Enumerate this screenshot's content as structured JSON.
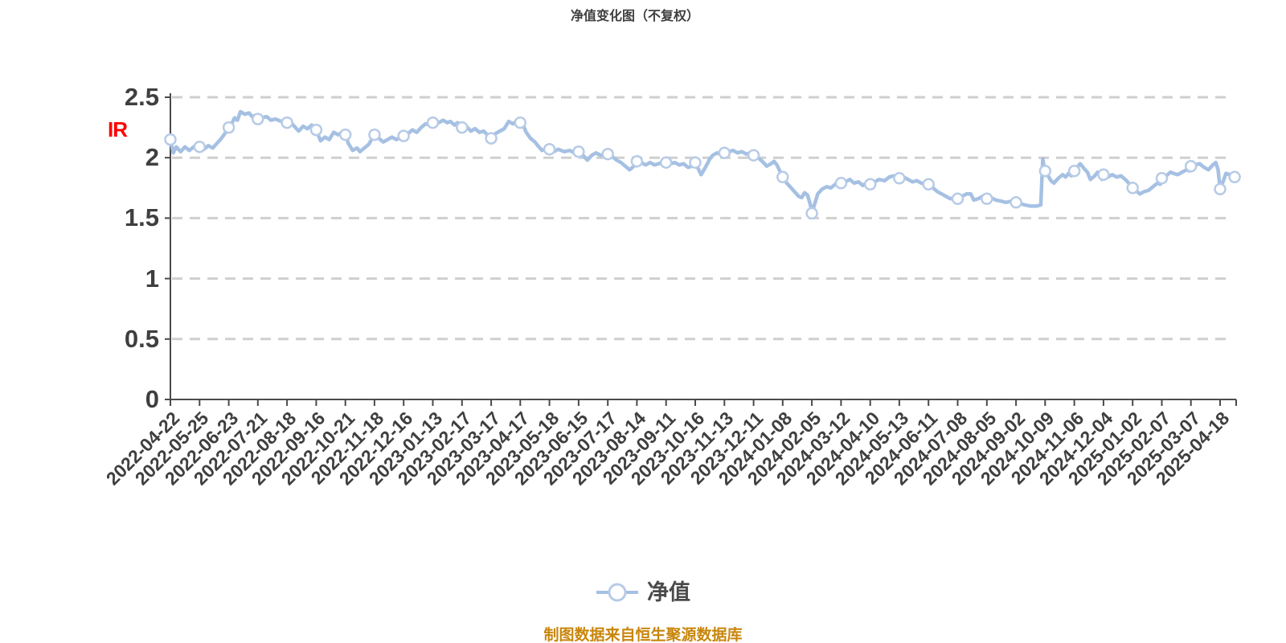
{
  "title": "净值变化图（不复权）",
  "side_label": "IR",
  "legend": {
    "label": "净值"
  },
  "footer": "制图数据来自恒生聚源数据库",
  "colors": {
    "background": "#ffffff",
    "title_text": "#3f3f3f",
    "axis": "#4a4a4a",
    "grid": "#cfcfcf",
    "line": "#a5c0e2",
    "marker_fill": "#ffffff",
    "marker_stroke": "#b7cbe7",
    "label_text": "#3f3f3f",
    "legend_text": "#4a4a4a",
    "footer_text": "#c8860c",
    "side_label_text": "#fd0202"
  },
  "chart_data": {
    "type": "line",
    "title": "净值变化图（不复权）",
    "series_name": "净值",
    "legend_position": "bottom",
    "grid": "dashed-horizontal",
    "ylim": [
      0,
      2.5
    ],
    "yticks": [
      0,
      0.5,
      1,
      1.5,
      2,
      2.5
    ],
    "categories": [
      "2022-04-22",
      "2022-05-25",
      "2022-06-23",
      "2022-07-21",
      "2022-08-18",
      "2022-09-16",
      "2022-10-21",
      "2022-11-18",
      "2022-12-16",
      "2023-01-13",
      "2023-02-17",
      "2023-03-17",
      "2023-04-17",
      "2023-05-18",
      "2023-06-15",
      "2023-07-17",
      "2023-08-14",
      "2023-09-11",
      "2023-10-16",
      "2023-11-13",
      "2023-12-11",
      "2024-01-08",
      "2024-02-05",
      "2024-03-12",
      "2024-04-10",
      "2024-05-13",
      "2024-06-11",
      "2024-07-08",
      "2024-08-05",
      "2024-09-02",
      "2024-10-09",
      "2024-11-06",
      "2024-12-04",
      "2025-01-02",
      "2025-02-07",
      "2025-03-07",
      "2025-04-18"
    ],
    "marker_values": [
      2.15,
      2.09,
      2.25,
      2.32,
      2.29,
      2.23,
      2.19,
      2.19,
      2.18,
      2.29,
      2.25,
      2.16,
      2.29,
      2.07,
      2.05,
      2.03,
      1.97,
      1.96,
      1.96,
      2.04,
      2.02,
      1.84,
      1.54,
      1.79,
      1.78,
      1.83,
      1.78,
      1.66,
      1.66,
      1.63,
      1.89,
      1.89,
      1.86,
      1.75,
      1.83,
      1.93,
      1.74
    ],
    "extra_end_point": {
      "index": 36.5,
      "value": 1.84
    },
    "points": [
      [
        0,
        2.15
      ],
      [
        0.1,
        2.04
      ],
      [
        0.2,
        2.09
      ],
      [
        0.35,
        2.05
      ],
      [
        0.5,
        2.09
      ],
      [
        0.65,
        2.06
      ],
      [
        0.8,
        2.09
      ],
      [
        0.9,
        2.07
      ],
      [
        1,
        2.09
      ],
      [
        1.15,
        2.07
      ],
      [
        1.3,
        2.1
      ],
      [
        1.45,
        2.08
      ],
      [
        1.6,
        2.12
      ],
      [
        1.75,
        2.16
      ],
      [
        1.9,
        2.21
      ],
      [
        2,
        2.25
      ],
      [
        2.1,
        2.28
      ],
      [
        2.2,
        2.33
      ],
      [
        2.3,
        2.31
      ],
      [
        2.4,
        2.38
      ],
      [
        2.55,
        2.36
      ],
      [
        2.7,
        2.37
      ],
      [
        2.8,
        2.34
      ],
      [
        2.9,
        2.35
      ],
      [
        3,
        2.32
      ],
      [
        3.15,
        2.33
      ],
      [
        3.3,
        2.34
      ],
      [
        3.45,
        2.31
      ],
      [
        3.6,
        2.32
      ],
      [
        3.8,
        2.3
      ],
      [
        3.9,
        2.31
      ],
      [
        4,
        2.29
      ],
      [
        4.1,
        2.3
      ],
      [
        4.25,
        2.26
      ],
      [
        4.4,
        2.22
      ],
      [
        4.55,
        2.26
      ],
      [
        4.7,
        2.24
      ],
      [
        4.85,
        2.27
      ],
      [
        4.95,
        2.25
      ],
      [
        5,
        2.23
      ],
      [
        5.15,
        2.14
      ],
      [
        5.3,
        2.17
      ],
      [
        5.45,
        2.15
      ],
      [
        5.6,
        2.21
      ],
      [
        5.75,
        2.19
      ],
      [
        5.9,
        2.21
      ],
      [
        6,
        2.19
      ],
      [
        6.1,
        2.12
      ],
      [
        6.25,
        2.06
      ],
      [
        6.4,
        2.08
      ],
      [
        6.5,
        2.05
      ],
      [
        6.65,
        2.08
      ],
      [
        6.8,
        2.11
      ],
      [
        6.9,
        2.15
      ],
      [
        7,
        2.19
      ],
      [
        7.15,
        2.16
      ],
      [
        7.3,
        2.13
      ],
      [
        7.45,
        2.15
      ],
      [
        7.6,
        2.17
      ],
      [
        7.75,
        2.15
      ],
      [
        7.9,
        2.17
      ],
      [
        8,
        2.18
      ],
      [
        8.15,
        2.2
      ],
      [
        8.3,
        2.23
      ],
      [
        8.45,
        2.21
      ],
      [
        8.6,
        2.25
      ],
      [
        8.75,
        2.28
      ],
      [
        8.9,
        2.27
      ],
      [
        9,
        2.29
      ],
      [
        9.1,
        2.31
      ],
      [
        9.2,
        2.29
      ],
      [
        9.35,
        2.31
      ],
      [
        9.5,
        2.29
      ],
      [
        9.6,
        2.3
      ],
      [
        9.75,
        2.27
      ],
      [
        9.85,
        2.29
      ],
      [
        9.95,
        2.26
      ],
      [
        10,
        2.25
      ],
      [
        10.15,
        2.26
      ],
      [
        10.3,
        2.22
      ],
      [
        10.45,
        2.24
      ],
      [
        10.6,
        2.21
      ],
      [
        10.75,
        2.22
      ],
      [
        10.9,
        2.18
      ],
      [
        11,
        2.16
      ],
      [
        11.15,
        2.2
      ],
      [
        11.3,
        2.22
      ],
      [
        11.45,
        2.24
      ],
      [
        11.6,
        2.3
      ],
      [
        11.75,
        2.28
      ],
      [
        11.9,
        2.31
      ],
      [
        12,
        2.29
      ],
      [
        12.1,
        2.27
      ],
      [
        12.2,
        2.21
      ],
      [
        12.35,
        2.16
      ],
      [
        12.5,
        2.13
      ],
      [
        12.6,
        2.1
      ],
      [
        12.75,
        2.06
      ],
      [
        12.9,
        2.08
      ],
      [
        13,
        2.07
      ],
      [
        13.15,
        2.05
      ],
      [
        13.3,
        2.07
      ],
      [
        13.5,
        2.05
      ],
      [
        13.7,
        2.06
      ],
      [
        13.85,
        2.04
      ],
      [
        14,
        2.05
      ],
      [
        14.15,
        2.02
      ],
      [
        14.3,
        1.98
      ],
      [
        14.45,
        2.02
      ],
      [
        14.6,
        2.04
      ],
      [
        14.75,
        2.02
      ],
      [
        14.9,
        2.03
      ],
      [
        15,
        2.03
      ],
      [
        15.15,
        2.01
      ],
      [
        15.3,
        1.98
      ],
      [
        15.45,
        1.96
      ],
      [
        15.6,
        1.93
      ],
      [
        15.75,
        1.9
      ],
      [
        15.9,
        1.93
      ],
      [
        16,
        1.97
      ],
      [
        16.15,
        1.96
      ],
      [
        16.3,
        1.94
      ],
      [
        16.45,
        1.96
      ],
      [
        16.6,
        1.94
      ],
      [
        16.75,
        1.95
      ],
      [
        16.9,
        1.97
      ],
      [
        17,
        1.96
      ],
      [
        17.15,
        1.95
      ],
      [
        17.3,
        1.96
      ],
      [
        17.45,
        1.94
      ],
      [
        17.6,
        1.95
      ],
      [
        17.75,
        1.92
      ],
      [
        17.9,
        1.93
      ],
      [
        18,
        1.96
      ],
      [
        18.1,
        1.91
      ],
      [
        18.2,
        1.86
      ],
      [
        18.35,
        1.92
      ],
      [
        18.5,
        1.99
      ],
      [
        18.6,
        2.02
      ],
      [
        18.75,
        2.04
      ],
      [
        18.9,
        2.03
      ],
      [
        19,
        2.04
      ],
      [
        19.15,
        2.05
      ],
      [
        19.3,
        2.06
      ],
      [
        19.45,
        2.04
      ],
      [
        19.6,
        2.05
      ],
      [
        19.75,
        2.03
      ],
      [
        19.9,
        2.04
      ],
      [
        20,
        2.02
      ],
      [
        20.15,
        2.0
      ],
      [
        20.3,
        1.97
      ],
      [
        20.45,
        1.93
      ],
      [
        20.6,
        1.95
      ],
      [
        20.7,
        1.97
      ],
      [
        20.8,
        1.94
      ],
      [
        20.9,
        1.89
      ],
      [
        21,
        1.84
      ],
      [
        21.1,
        1.8
      ],
      [
        21.25,
        1.76
      ],
      [
        21.4,
        1.72
      ],
      [
        21.55,
        1.68
      ],
      [
        21.65,
        1.67
      ],
      [
        21.75,
        1.71
      ],
      [
        21.85,
        1.69
      ],
      [
        21.95,
        1.61
      ],
      [
        22,
        1.54
      ],
      [
        22.1,
        1.62
      ],
      [
        22.2,
        1.7
      ],
      [
        22.35,
        1.74
      ],
      [
        22.5,
        1.76
      ],
      [
        22.65,
        1.75
      ],
      [
        22.8,
        1.78
      ],
      [
        22.9,
        1.8
      ],
      [
        23,
        1.79
      ],
      [
        23.15,
        1.8
      ],
      [
        23.3,
        1.82
      ],
      [
        23.45,
        1.79
      ],
      [
        23.6,
        1.8
      ],
      [
        23.75,
        1.77
      ],
      [
        23.9,
        1.8
      ],
      [
        24,
        1.78
      ],
      [
        24.15,
        1.8
      ],
      [
        24.3,
        1.82
      ],
      [
        24.5,
        1.81
      ],
      [
        24.65,
        1.84
      ],
      [
        24.8,
        1.85
      ],
      [
        24.9,
        1.84
      ],
      [
        25,
        1.83
      ],
      [
        25.15,
        1.84
      ],
      [
        25.3,
        1.82
      ],
      [
        25.45,
        1.8
      ],
      [
        25.6,
        1.81
      ],
      [
        25.75,
        1.79
      ],
      [
        25.9,
        1.78
      ],
      [
        26,
        1.78
      ],
      [
        26.15,
        1.75
      ],
      [
        26.3,
        1.72
      ],
      [
        26.45,
        1.7
      ],
      [
        26.6,
        1.68
      ],
      [
        26.75,
        1.66
      ],
      [
        26.9,
        1.67
      ],
      [
        27,
        1.66
      ],
      [
        27.15,
        1.68
      ],
      [
        27.3,
        1.7
      ],
      [
        27.45,
        1.7
      ],
      [
        27.55,
        1.65
      ],
      [
        27.7,
        1.66
      ],
      [
        27.85,
        1.68
      ],
      [
        28,
        1.66
      ],
      [
        28.15,
        1.67
      ],
      [
        28.3,
        1.65
      ],
      [
        28.5,
        1.64
      ],
      [
        28.65,
        1.63
      ],
      [
        28.85,
        1.64
      ],
      [
        29,
        1.63
      ],
      [
        29.15,
        1.62
      ],
      [
        29.3,
        1.61
      ],
      [
        29.5,
        1.6
      ],
      [
        29.7,
        1.6
      ],
      [
        29.85,
        1.61
      ],
      [
        29.92,
        1.99
      ],
      [
        29.96,
        1.93
      ],
      [
        30,
        1.89
      ],
      [
        30.1,
        1.85
      ],
      [
        30.2,
        1.81
      ],
      [
        30.3,
        1.79
      ],
      [
        30.45,
        1.83
      ],
      [
        30.6,
        1.86
      ],
      [
        30.7,
        1.84
      ],
      [
        30.8,
        1.87
      ],
      [
        30.9,
        1.85
      ],
      [
        30.95,
        1.88
      ],
      [
        31,
        1.89
      ],
      [
        31.1,
        1.92
      ],
      [
        31.2,
        1.95
      ],
      [
        31.3,
        1.92
      ],
      [
        31.45,
        1.88
      ],
      [
        31.55,
        1.82
      ],
      [
        31.7,
        1.85
      ],
      [
        31.8,
        1.88
      ],
      [
        31.9,
        1.84
      ],
      [
        31.95,
        1.82
      ],
      [
        32,
        1.86
      ],
      [
        32.15,
        1.84
      ],
      [
        32.3,
        1.86
      ],
      [
        32.45,
        1.84
      ],
      [
        32.6,
        1.85
      ],
      [
        32.75,
        1.82
      ],
      [
        32.9,
        1.78
      ],
      [
        33,
        1.75
      ],
      [
        33.15,
        1.72
      ],
      [
        33.25,
        1.7
      ],
      [
        33.4,
        1.72
      ],
      [
        33.55,
        1.73
      ],
      [
        33.7,
        1.76
      ],
      [
        33.85,
        1.79
      ],
      [
        33.95,
        1.78
      ],
      [
        34,
        1.83
      ],
      [
        34.15,
        1.85
      ],
      [
        34.3,
        1.88
      ],
      [
        34.4,
        1.87
      ],
      [
        34.55,
        1.86
      ],
      [
        34.7,
        1.88
      ],
      [
        34.85,
        1.9
      ],
      [
        34.95,
        1.89
      ],
      [
        35,
        1.93
      ],
      [
        35.15,
        1.94
      ],
      [
        35.3,
        1.95
      ],
      [
        35.45,
        1.92
      ],
      [
        35.6,
        1.9
      ],
      [
        35.75,
        1.94
      ],
      [
        35.85,
        1.96
      ],
      [
        35.93,
        1.9
      ],
      [
        36,
        1.74
      ],
      [
        36.1,
        1.8
      ],
      [
        36.2,
        1.87
      ],
      [
        36.35,
        1.86
      ],
      [
        36.5,
        1.84
      ]
    ]
  }
}
